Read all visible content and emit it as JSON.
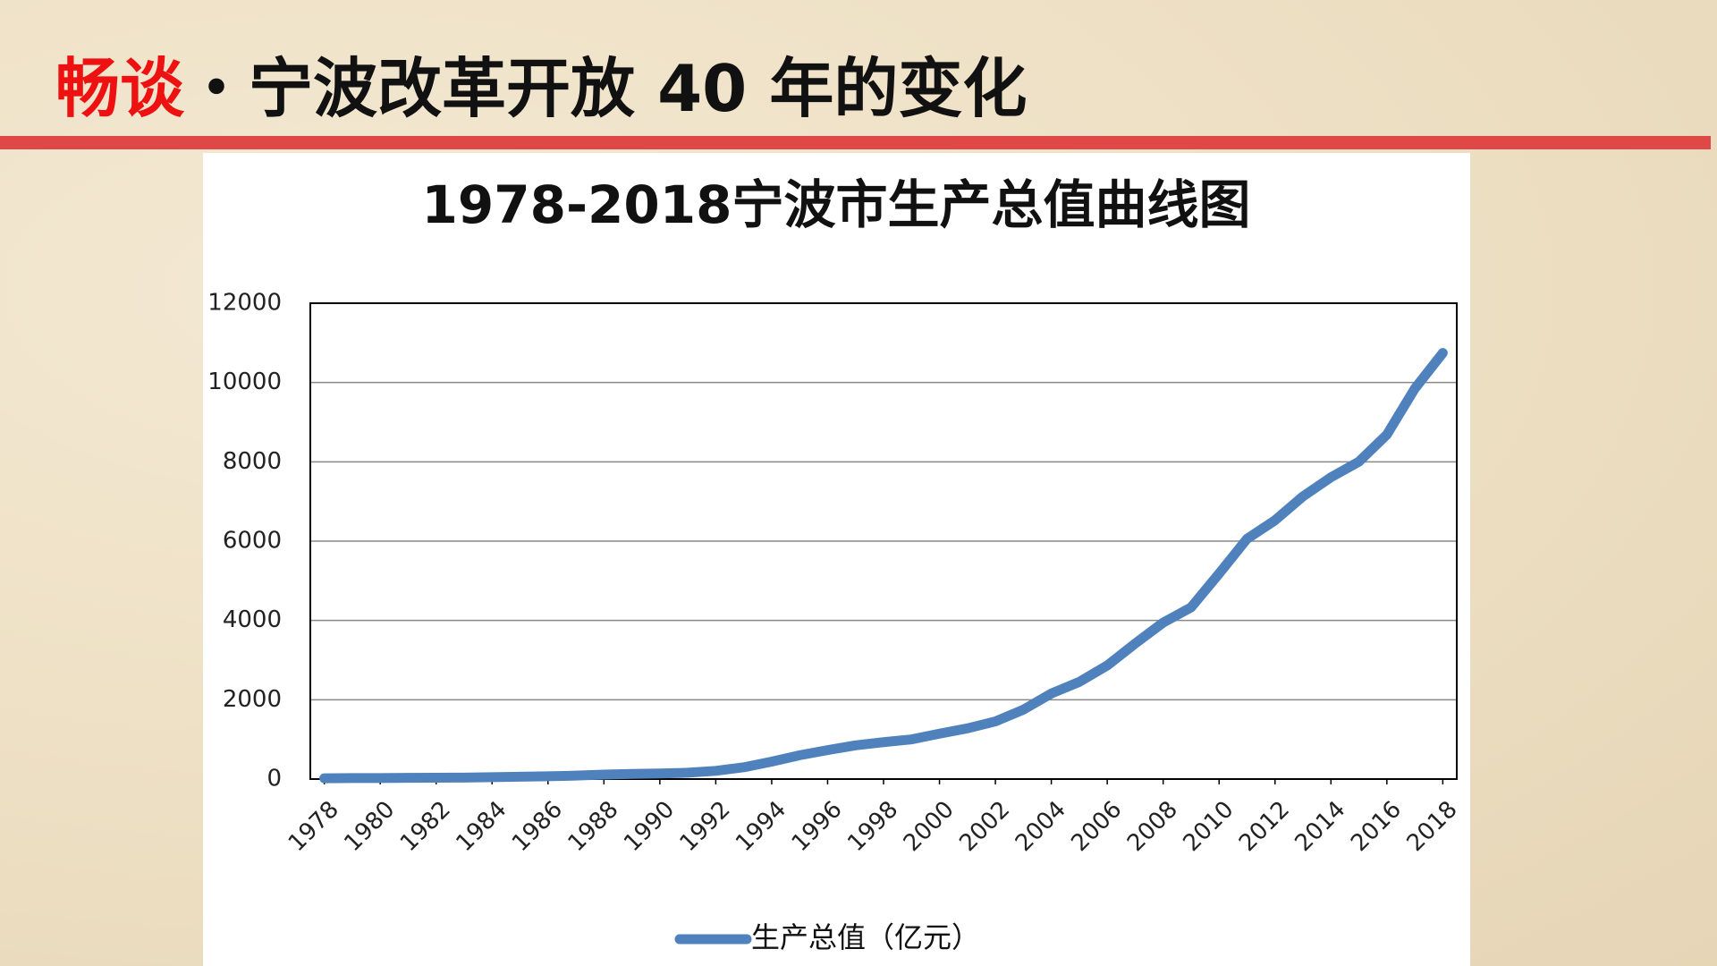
{
  "slide_header": {
    "highlight": "畅谈",
    "text": "・宁波改革开放 40 年的变化"
  },
  "chart_data": {
    "type": "line",
    "title": "1978-2018宁波市生产总值曲线图",
    "x": [
      1978,
      1979,
      1980,
      1981,
      1982,
      1983,
      1984,
      1985,
      1986,
      1987,
      1988,
      1989,
      1990,
      1991,
      1992,
      1993,
      1994,
      1995,
      1996,
      1997,
      1998,
      1999,
      2000,
      2001,
      2002,
      2003,
      2004,
      2005,
      2006,
      2007,
      2008,
      2009,
      2010,
      2011,
      2012,
      2013,
      2014,
      2015,
      2016,
      2017,
      2018
    ],
    "series": [
      {
        "name": "生产总值（亿元）",
        "color": "#4f81bd",
        "values": [
          20,
          24,
          26,
          30,
          33,
          38,
          48,
          60,
          71,
          87,
          113,
          129,
          141,
          160,
          207,
          297,
          440,
          600,
          730,
          850,
          930,
          1000,
          1145,
          1278,
          1453,
          1750,
          2158,
          2450,
          2864,
          3418,
          3946,
          4330,
          5181,
          6059,
          6525,
          7128,
          7610,
          8004,
          8686,
          9847,
          10746
        ]
      }
    ],
    "xlim": [
      1977.5,
      2018.5
    ],
    "xticks": [
      1978,
      1980,
      1982,
      1984,
      1986,
      1988,
      1990,
      1992,
      1994,
      1996,
      1998,
      2000,
      2002,
      2004,
      2006,
      2008,
      2010,
      2012,
      2014,
      2016,
      2018
    ],
    "ylim": [
      0,
      12000
    ],
    "yticks": [
      0,
      2000,
      4000,
      6000,
      8000,
      10000,
      12000
    ],
    "grid": true
  }
}
